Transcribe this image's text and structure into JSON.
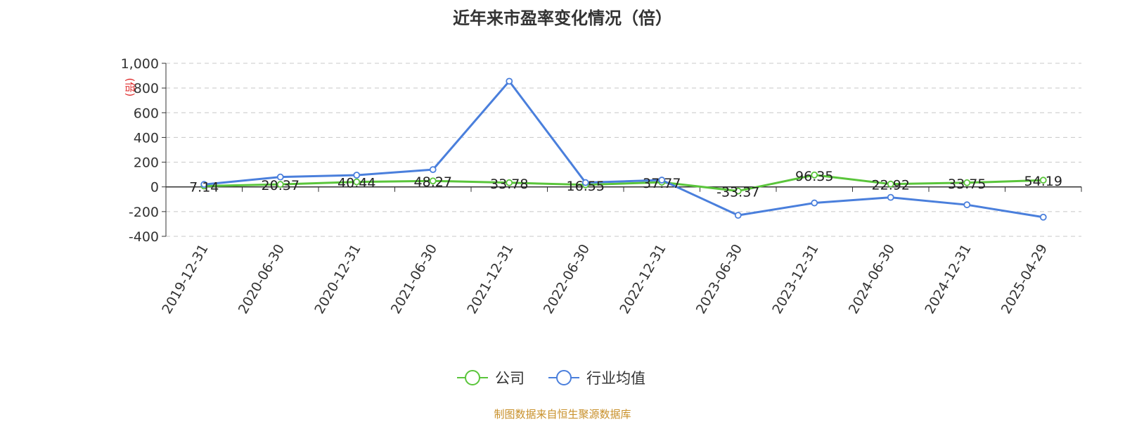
{
  "chart_data": {
    "type": "line",
    "title": "近年来市盈率变化情况（倍）",
    "ylabel": "(倍)",
    "categories": [
      "2019-12-31",
      "2020-06-30",
      "2020-12-31",
      "2021-06-30",
      "2021-12-31",
      "2022-06-30",
      "2022-12-31",
      "2023-06-30",
      "2023-12-31",
      "2024-06-30",
      "2024-12-31",
      "2025-04-29"
    ],
    "yticks": [
      -400,
      -200,
      0,
      200,
      400,
      600,
      800,
      1000
    ],
    "ytick_labels": [
      "-400",
      "-200",
      "0",
      "200",
      "400",
      "600",
      "800",
      "1,000"
    ],
    "ylim": [
      -400,
      1000
    ],
    "grid": true,
    "legend_position": "bottom-center",
    "series": [
      {
        "name": "公司",
        "color": "#5ac53b",
        "values": [
          7.14,
          20.37,
          40.44,
          48.27,
          33.78,
          16.55,
          37.77,
          -33.37,
          96.35,
          22.92,
          33.75,
          54.19
        ],
        "labels": [
          "7.14",
          "20.37",
          "40.44",
          "48.27",
          "33.78",
          "16.55",
          "37.77",
          "-33.37",
          "96.35",
          "22.92",
          "33.75",
          "54.19"
        ]
      },
      {
        "name": "行业均值",
        "color": "#4a7fdc",
        "values": [
          20,
          80,
          95,
          140,
          855,
          35,
          55,
          -230,
          -130,
          -85,
          -145,
          -245
        ]
      }
    ]
  },
  "source_note": "制图数据来自恒生聚源数据库"
}
